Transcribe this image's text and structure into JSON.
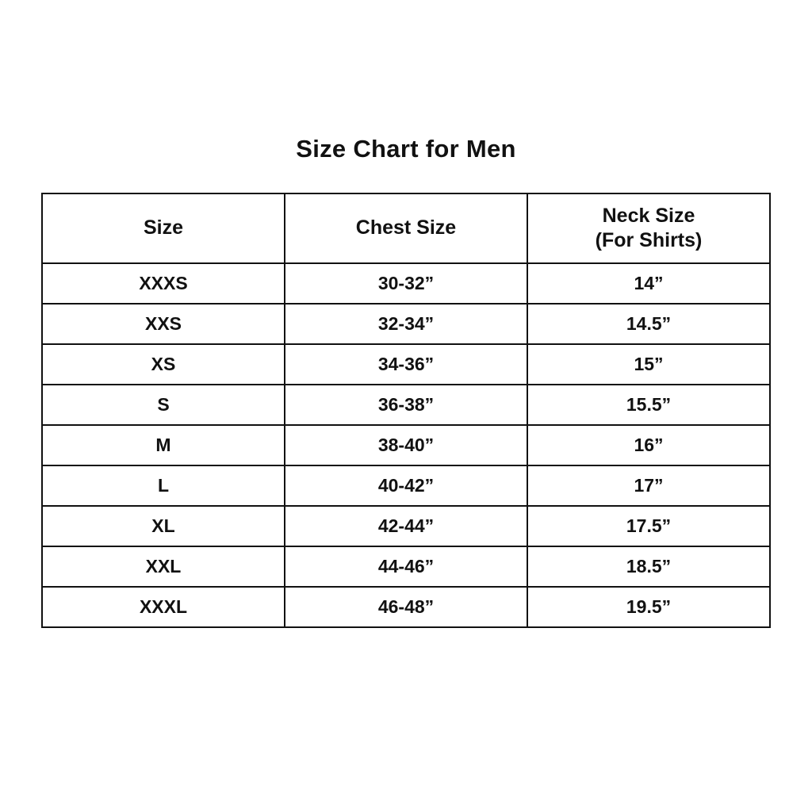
{
  "page": {
    "background_color": "#ffffff",
    "text_color": "#111111",
    "border_color": "#111111"
  },
  "chart_data": {
    "type": "table",
    "title": "Size Chart for Men",
    "columns": [
      "Size",
      "Chest Size",
      "Neck Size (For Shirts)"
    ],
    "header": {
      "size": "Size",
      "chest": "Chest Size",
      "neck_line1": "Neck Size",
      "neck_line2": "(For Shirts)"
    },
    "rows": [
      [
        "XXXS",
        "30-32”",
        "14”"
      ],
      [
        "XXS",
        "32-34”",
        "14.5”"
      ],
      [
        "XS",
        "34-36”",
        "15”"
      ],
      [
        "S",
        "36-38”",
        "15.5”"
      ],
      [
        "M",
        "38-40”",
        "16”"
      ],
      [
        "L",
        "40-42”",
        "17”"
      ],
      [
        "XL",
        "42-44”",
        "17.5”"
      ],
      [
        "XXL",
        "44-46”",
        "18.5”"
      ],
      [
        "XXXL",
        "46-48”",
        "19.5”"
      ]
    ]
  }
}
